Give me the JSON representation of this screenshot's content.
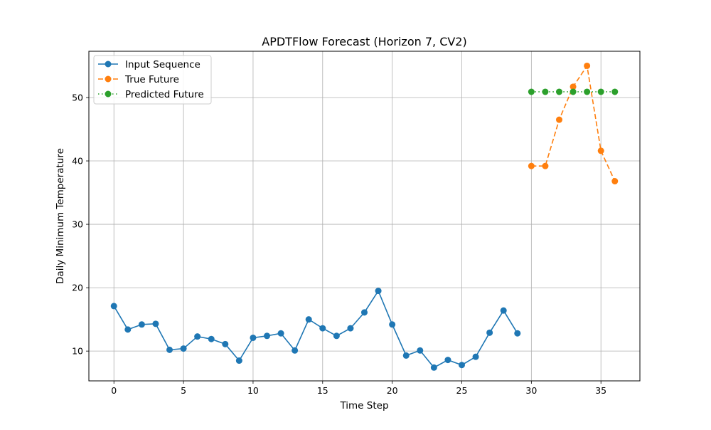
{
  "chart_data": {
    "type": "line",
    "title": "APDTFlow Forecast (Horizon 7, CV2)",
    "xlabel": "Time Step",
    "ylabel": "Daily Minimum Temperature",
    "xlim": [
      -1.8,
      37.8
    ],
    "ylim": [
      5.3,
      57.3
    ],
    "xticks": [
      0,
      5,
      10,
      15,
      20,
      25,
      30,
      35
    ],
    "yticks": [
      10,
      20,
      30,
      40,
      50
    ],
    "grid": true,
    "legend_position": "top-left",
    "series": [
      {
        "name": "Input Sequence",
        "color": "#1f77b4",
        "line_style": "solid",
        "marker": "circle",
        "x": [
          0,
          1,
          2,
          3,
          4,
          5,
          6,
          7,
          8,
          9,
          10,
          11,
          12,
          13,
          14,
          15,
          16,
          17,
          18,
          19,
          20,
          21,
          22,
          23,
          24,
          25,
          26,
          27,
          28,
          29
        ],
        "y": [
          17.1,
          13.4,
          14.2,
          14.3,
          10.2,
          10.4,
          12.3,
          11.9,
          11.1,
          8.5,
          12.1,
          12.4,
          12.8,
          10.1,
          15.0,
          13.6,
          12.4,
          13.6,
          16.1,
          19.5,
          14.2,
          9.3,
          10.1,
          7.4,
          8.6,
          7.8,
          9.1,
          12.9,
          16.4,
          12.8
        ]
      },
      {
        "name": "True Future",
        "color": "#ff7f0e",
        "line_style": "dashed",
        "marker": "circle",
        "x": [
          30,
          31,
          32,
          33,
          34,
          35,
          36
        ],
        "y": [
          39.2,
          39.2,
          46.5,
          51.7,
          55.0,
          41.6,
          36.8
        ]
      },
      {
        "name": "Predicted Future",
        "color": "#2ca02c",
        "line_style": "dotted",
        "marker": "circle",
        "x": [
          30,
          31,
          32,
          33,
          34,
          35,
          36
        ],
        "y": [
          50.9,
          50.9,
          50.9,
          50.9,
          50.9,
          50.9,
          50.9
        ]
      }
    ]
  }
}
